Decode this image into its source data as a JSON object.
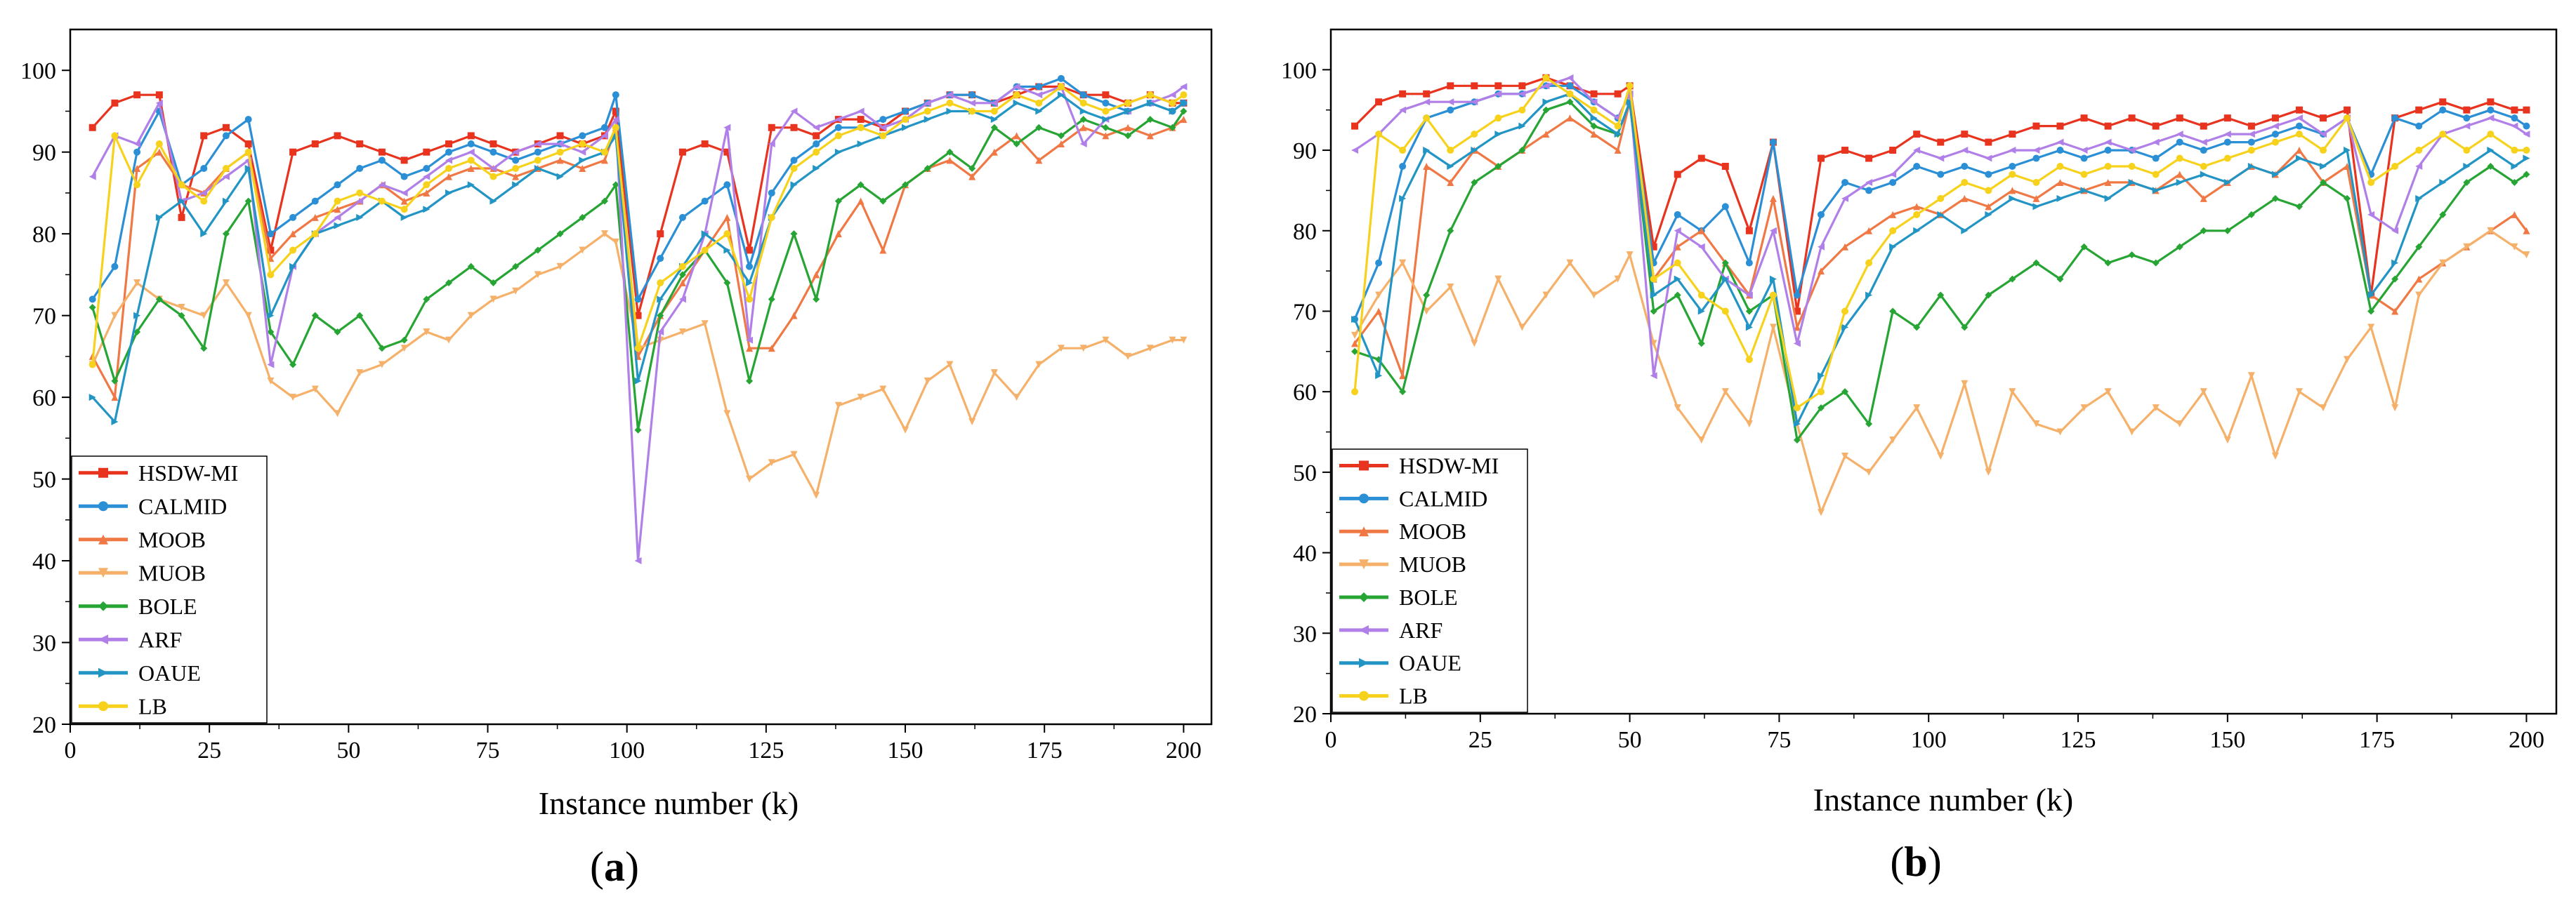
{
  "colors": {
    "HSDW-MI": "#e8331e",
    "CALMID": "#2b8fd6",
    "MOOB": "#f07844",
    "MUOB": "#f5b06a",
    "BOLE": "#27a534",
    "ARF": "#b07fe8",
    "OAUE": "#2295c4",
    "LB": "#f7d21c"
  },
  "chart_data": [
    {
      "type": "line",
      "panel_label": "a",
      "xlabel": "Instance number (k)",
      "ylabel": "",
      "xlim": [
        0,
        205
      ],
      "ylim": [
        20,
        105
      ],
      "xticks": [
        0,
        25,
        50,
        75,
        100,
        125,
        150,
        175,
        200
      ],
      "yticks": [
        20,
        30,
        40,
        50,
        60,
        70,
        80,
        90,
        100
      ],
      "x": [
        4,
        8,
        12,
        16,
        20,
        24,
        28,
        32,
        36,
        40,
        44,
        48,
        52,
        56,
        60,
        64,
        68,
        72,
        76,
        80,
        84,
        88,
        92,
        96,
        98,
        102,
        106,
        110,
        114,
        118,
        122,
        126,
        130,
        134,
        138,
        142,
        146,
        150,
        154,
        158,
        162,
        166,
        170,
        174,
        178,
        182,
        186,
        190,
        194,
        198,
        200
      ],
      "legend": [
        "HSDW-MI",
        "CALMID",
        "MOOB",
        "MUOB",
        "BOLE",
        "ARF",
        "OAUE",
        "LB"
      ],
      "legend_position": "bottom-left",
      "series": [
        {
          "name": "HSDW-MI",
          "values": [
            93,
            96,
            97,
            97,
            82,
            92,
            93,
            91,
            78,
            90,
            91,
            92,
            91,
            90,
            89,
            90,
            91,
            92,
            91,
            90,
            91,
            92,
            91,
            92,
            95,
            70,
            80,
            90,
            91,
            90,
            78,
            93,
            93,
            92,
            94,
            94,
            93,
            95,
            96,
            97,
            97,
            96,
            97,
            98,
            98,
            97,
            97,
            96,
            97,
            96,
            96
          ]
        },
        {
          "name": "CALMID",
          "values": [
            72,
            76,
            90,
            95,
            86,
            88,
            92,
            94,
            80,
            82,
            84,
            86,
            88,
            89,
            87,
            88,
            90,
            91,
            90,
            89,
            90,
            91,
            92,
            93,
            97,
            72,
            77,
            82,
            84,
            86,
            76,
            85,
            89,
            91,
            93,
            93,
            94,
            95,
            96,
            97,
            97,
            96,
            98,
            98,
            99,
            97,
            96,
            95,
            96,
            95,
            96
          ]
        },
        {
          "name": "MOOB",
          "values": [
            65,
            60,
            88,
            90,
            86,
            85,
            88,
            90,
            77,
            80,
            82,
            83,
            84,
            86,
            84,
            85,
            87,
            88,
            88,
            87,
            88,
            89,
            88,
            89,
            93,
            65,
            70,
            74,
            78,
            82,
            66,
            66,
            70,
            75,
            80,
            84,
            78,
            86,
            88,
            89,
            87,
            90,
            92,
            89,
            91,
            93,
            92,
            93,
            92,
            93,
            94
          ]
        },
        {
          "name": "MUOB",
          "values": [
            64,
            70,
            74,
            72,
            71,
            70,
            74,
            70,
            62,
            60,
            61,
            58,
            63,
            64,
            66,
            68,
            67,
            70,
            72,
            73,
            75,
            76,
            78,
            80,
            79,
            66,
            67,
            68,
            69,
            58,
            50,
            52,
            53,
            48,
            59,
            60,
            61,
            56,
            62,
            64,
            57,
            63,
            60,
            64,
            66,
            66,
            67,
            65,
            66,
            67,
            67
          ]
        },
        {
          "name": "BOLE",
          "values": [
            71,
            62,
            68,
            72,
            70,
            66,
            80,
            84,
            68,
            64,
            70,
            68,
            70,
            66,
            67,
            72,
            74,
            76,
            74,
            76,
            78,
            80,
            82,
            84,
            86,
            56,
            70,
            75,
            78,
            74,
            62,
            72,
            80,
            72,
            84,
            86,
            84,
            86,
            88,
            90,
            88,
            93,
            91,
            93,
            92,
            94,
            93,
            92,
            94,
            93,
            95
          ]
        },
        {
          "name": "ARF",
          "values": [
            87,
            92,
            91,
            96,
            84,
            85,
            87,
            89,
            64,
            76,
            80,
            82,
            84,
            86,
            85,
            87,
            89,
            90,
            88,
            90,
            91,
            91,
            90,
            92,
            94,
            40,
            68,
            72,
            80,
            93,
            67,
            91,
            95,
            93,
            94,
            95,
            93,
            94,
            96,
            97,
            96,
            96,
            98,
            97,
            98,
            91,
            94,
            95,
            96,
            97,
            98
          ]
        },
        {
          "name": "OAUE",
          "values": [
            60,
            57,
            70,
            82,
            84,
            80,
            84,
            88,
            70,
            76,
            80,
            81,
            82,
            84,
            82,
            83,
            85,
            86,
            84,
            86,
            88,
            87,
            89,
            90,
            92,
            62,
            72,
            76,
            80,
            78,
            74,
            82,
            86,
            88,
            90,
            91,
            92,
            93,
            94,
            95,
            95,
            94,
            96,
            95,
            97,
            95,
            94,
            95,
            96,
            95,
            96
          ]
        },
        {
          "name": "LB",
          "values": [
            64,
            92,
            86,
            91,
            86,
            84,
            88,
            90,
            75,
            78,
            80,
            84,
            85,
            84,
            83,
            86,
            88,
            89,
            87,
            88,
            89,
            90,
            91,
            90,
            93,
            66,
            74,
            76,
            78,
            80,
            72,
            82,
            88,
            90,
            92,
            93,
            92,
            94,
            95,
            96,
            95,
            95,
            97,
            96,
            98,
            96,
            95,
            96,
            97,
            96,
            97
          ]
        }
      ]
    },
    {
      "type": "line",
      "panel_label": "b",
      "xlabel": "Instance number (k)",
      "ylabel": "",
      "xlim": [
        0,
        205
      ],
      "ylim": [
        20,
        105
      ],
      "xticks": [
        0,
        25,
        50,
        75,
        100,
        125,
        150,
        175,
        200
      ],
      "yticks": [
        20,
        30,
        40,
        50,
        60,
        70,
        80,
        90,
        100
      ],
      "x": [
        4,
        8,
        12,
        16,
        20,
        24,
        28,
        32,
        36,
        40,
        44,
        48,
        50,
        54,
        58,
        62,
        66,
        70,
        74,
        78,
        82,
        86,
        90,
        94,
        98,
        102,
        106,
        110,
        114,
        118,
        122,
        126,
        130,
        134,
        138,
        142,
        146,
        150,
        154,
        158,
        162,
        166,
        170,
        174,
        178,
        182,
        186,
        190,
        194,
        198,
        200
      ],
      "legend": [
        "HSDW-MI",
        "CALMID",
        "MOOB",
        "MUOB",
        "BOLE",
        "ARF",
        "OAUE",
        "LB"
      ],
      "legend_position": "bottom-left",
      "series": [
        {
          "name": "HSDW-MI",
          "values": [
            93,
            96,
            97,
            97,
            98,
            98,
            98,
            98,
            99,
            98,
            97,
            97,
            98,
            78,
            87,
            89,
            88,
            80,
            91,
            70,
            89,
            90,
            89,
            90,
            92,
            91,
            92,
            91,
            92,
            93,
            93,
            94,
            93,
            94,
            93,
            94,
            93,
            94,
            93,
            94,
            95,
            94,
            95,
            72,
            94,
            95,
            96,
            95,
            96,
            95,
            95
          ]
        },
        {
          "name": "CALMID",
          "values": [
            69,
            76,
            88,
            94,
            95,
            96,
            97,
            97,
            98,
            98,
            96,
            94,
            97,
            76,
            82,
            80,
            83,
            76,
            91,
            72,
            82,
            86,
            85,
            86,
            88,
            87,
            88,
            87,
            88,
            89,
            90,
            89,
            90,
            90,
            89,
            91,
            90,
            91,
            91,
            92,
            93,
            92,
            94,
            87,
            94,
            93,
            95,
            94,
            95,
            94,
            93
          ]
        },
        {
          "name": "MOOB",
          "values": [
            66,
            70,
            62,
            88,
            86,
            90,
            88,
            90,
            92,
            94,
            92,
            90,
            96,
            74,
            78,
            80,
            76,
            72,
            84,
            68,
            75,
            78,
            80,
            82,
            83,
            82,
            84,
            83,
            85,
            84,
            86,
            85,
            86,
            86,
            85,
            87,
            84,
            86,
            88,
            87,
            90,
            86,
            88,
            72,
            70,
            74,
            76,
            78,
            80,
            82,
            80
          ]
        },
        {
          "name": "MUOB",
          "values": [
            67,
            72,
            76,
            70,
            73,
            66,
            74,
            68,
            72,
            76,
            72,
            74,
            77,
            66,
            58,
            54,
            60,
            56,
            68,
            56,
            45,
            52,
            50,
            54,
            58,
            52,
            61,
            50,
            60,
            56,
            55,
            58,
            60,
            55,
            58,
            56,
            60,
            54,
            62,
            52,
            60,
            58,
            64,
            68,
            58,
            72,
            76,
            78,
            80,
            78,
            77
          ]
        },
        {
          "name": "BOLE",
          "values": [
            65,
            64,
            60,
            72,
            80,
            86,
            88,
            90,
            95,
            96,
            93,
            92,
            96,
            70,
            72,
            66,
            76,
            70,
            72,
            54,
            58,
            60,
            56,
            70,
            68,
            72,
            68,
            72,
            74,
            76,
            74,
            78,
            76,
            77,
            76,
            78,
            80,
            80,
            82,
            84,
            83,
            86,
            84,
            70,
            74,
            78,
            82,
            86,
            88,
            86,
            87
          ]
        },
        {
          "name": "ARF",
          "values": [
            90,
            92,
            95,
            96,
            96,
            96,
            97,
            97,
            98,
            99,
            96,
            94,
            97,
            62,
            80,
            78,
            74,
            72,
            80,
            66,
            78,
            84,
            86,
            87,
            90,
            89,
            90,
            89,
            90,
            90,
            91,
            90,
            91,
            90,
            91,
            92,
            91,
            92,
            92,
            93,
            94,
            92,
            94,
            82,
            80,
            88,
            92,
            93,
            94,
            93,
            92
          ]
        },
        {
          "name": "OAUE",
          "values": [
            69,
            62,
            84,
            90,
            88,
            90,
            92,
            93,
            96,
            97,
            94,
            92,
            96,
            72,
            74,
            70,
            74,
            68,
            74,
            56,
            62,
            68,
            72,
            78,
            80,
            82,
            80,
            82,
            84,
            83,
            84,
            85,
            84,
            86,
            85,
            86,
            87,
            86,
            88,
            87,
            89,
            88,
            90,
            72,
            76,
            84,
            86,
            88,
            90,
            88,
            89
          ]
        },
        {
          "name": "LB",
          "values": [
            60,
            92,
            90,
            94,
            90,
            92,
            94,
            95,
            99,
            97,
            95,
            93,
            98,
            74,
            76,
            72,
            70,
            64,
            72,
            58,
            60,
            70,
            76,
            80,
            82,
            84,
            86,
            85,
            87,
            86,
            88,
            87,
            88,
            88,
            87,
            89,
            88,
            89,
            90,
            91,
            92,
            90,
            94,
            86,
            88,
            90,
            92,
            90,
            92,
            90,
            90
          ]
        }
      ]
    }
  ]
}
